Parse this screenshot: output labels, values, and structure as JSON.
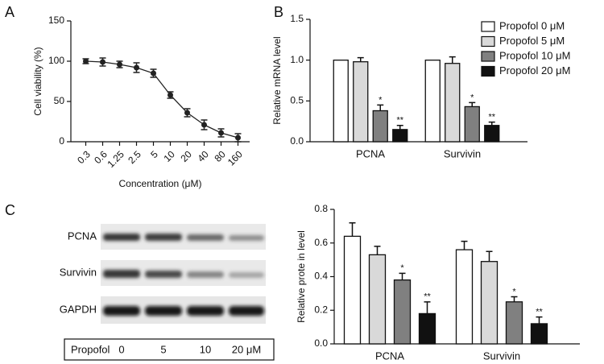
{
  "chart_data": [
    {
      "type": "line",
      "panel": "A",
      "x_label": "Concentration (μM)",
      "y_label": "Cell viability (%)",
      "categories": [
        "0.3",
        "0.6",
        "1.25",
        "2.5",
        "5",
        "10",
        "20",
        "40",
        "80",
        "160"
      ],
      "values": [
        100,
        99,
        96,
        92,
        85,
        58,
        36,
        21,
        11,
        5
      ],
      "errors": [
        3,
        5,
        4,
        6,
        5,
        4,
        5,
        6,
        5,
        5
      ],
      "color": "#222",
      "ylim": [
        0,
        150
      ],
      "yticks": [
        0,
        50,
        100,
        150
      ]
    },
    {
      "type": "bar",
      "panel": "B",
      "y_label": "Relative mRNA level",
      "categories": [
        "PCNA",
        "Survivin"
      ],
      "series": [
        {
          "name": "Propofol 0 μM",
          "color": "#ffffff",
          "values": [
            1.0,
            1.0
          ],
          "errors": [
            0,
            0
          ],
          "significance": [
            null,
            null
          ]
        },
        {
          "name": "Propofol 5 μM",
          "color": "#d9d9d9",
          "values": [
            0.98,
            0.96
          ],
          "errors": [
            0.05,
            0.08
          ],
          "significance": [
            null,
            null
          ]
        },
        {
          "name": "Propofol 10 μM",
          "color": "#808080",
          "values": [
            0.38,
            0.43
          ],
          "errors": [
            0.07,
            0.05
          ],
          "significance": [
            "*",
            "*"
          ]
        },
        {
          "name": "Propofol 20 μM",
          "color": "#111111",
          "values": [
            0.15,
            0.2
          ],
          "errors": [
            0.05,
            0.04
          ],
          "significance": [
            "**",
            "**"
          ]
        }
      ],
      "ylim": [
        0,
        1.5
      ],
      "yticks": [
        {
          "value": 0,
          "label": "0.0"
        },
        {
          "value": 0.5,
          "label": "0.5"
        },
        {
          "value": 1,
          "label": "1.0"
        },
        {
          "value": 1.5,
          "label": "1.5"
        }
      ],
      "legend": "top-right"
    },
    {
      "type": "bar",
      "y_label": "Relative prote in level",
      "categories": [
        "PCNA",
        "Survivin"
      ],
      "series": [
        {
          "color": "#ffffff",
          "values": [
            0.64,
            0.56
          ],
          "errors": [
            0.08,
            0.05
          ],
          "significance": [
            null,
            null
          ]
        },
        {
          "color": "#d9d9d9",
          "values": [
            0.53,
            0.49
          ],
          "errors": [
            0.05,
            0.06
          ],
          "significance": [
            null,
            null
          ]
        },
        {
          "color": "#808080",
          "values": [
            0.38,
            0.25
          ],
          "errors": [
            0.04,
            0.03
          ],
          "significance": [
            "*",
            "*"
          ]
        },
        {
          "color": "#111111",
          "values": [
            0.18,
            0.12
          ],
          "errors": [
            0.07,
            0.04
          ],
          "significance": [
            "**",
            "**"
          ]
        }
      ],
      "ylim": [
        0,
        0.8
      ],
      "yticks": [
        {
          "value": 0,
          "label": "0.0"
        },
        {
          "value": 0.2,
          "label": "0.2"
        },
        {
          "value": 0.4,
          "label": "0.4"
        },
        {
          "value": 0.6,
          "label": "0.6"
        },
        {
          "value": 0.8,
          "label": "0.8"
        }
      ]
    }
  ],
  "blot": {
    "panel": "C",
    "rows": [
      "PCNA",
      "Survivin",
      "GAPDH"
    ],
    "lane_label": "Propofol",
    "lanes": [
      "0",
      "5",
      "10",
      "20 μM"
    ]
  }
}
